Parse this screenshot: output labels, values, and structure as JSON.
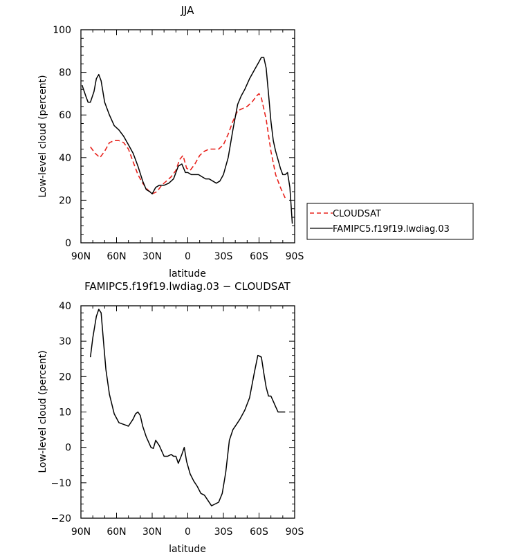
{
  "colors": {
    "cloudsat": "#e8221c",
    "model": "#000000"
  },
  "chart_data": [
    {
      "type": "line",
      "title": "JJA",
      "xlabel": "latitude",
      "ylabel": "Low-level cloud (percent)",
      "xlim": [
        90,
        -90
      ],
      "ylim": [
        0,
        100
      ],
      "x_ticks": [
        90,
        60,
        30,
        0,
        -30,
        -60,
        -90
      ],
      "x_tick_labels": [
        "90N",
        "60N",
        "30N",
        "0",
        "30S",
        "60S",
        "90S"
      ],
      "y_ticks": [
        0,
        20,
        40,
        60,
        80,
        100
      ],
      "y_tick_labels": [
        "0",
        "20",
        "40",
        "60",
        "80",
        "100"
      ],
      "legend_placement": "outside-right",
      "series": [
        {
          "name": "CLOUDSAT",
          "style": "dashed",
          "color": "#e8221c",
          "x": [
            82,
            78,
            74,
            70,
            66,
            62,
            58,
            54,
            50,
            46,
            42,
            38,
            34,
            30,
            26,
            22,
            18,
            14,
            10,
            7,
            4,
            1,
            -2,
            -6,
            -10,
            -14,
            -18,
            -22,
            -26,
            -30,
            -34,
            -38,
            -42,
            -46,
            -50,
            -54,
            -58,
            -60,
            -62,
            -66,
            -70,
            -74,
            -78,
            -82
          ],
          "y": [
            45,
            42,
            40,
            43,
            47,
            48,
            48,
            47,
            44,
            38,
            32,
            28,
            25,
            23,
            24,
            27,
            29,
            31,
            34,
            39,
            41,
            35,
            34,
            37,
            41,
            43,
            44,
            44,
            44,
            46,
            51,
            57,
            62,
            63,
            64,
            66,
            69,
            70,
            68,
            58,
            43,
            32,
            26,
            21
          ]
        },
        {
          "name": "FAMIPC5.f19f19.lwdiag.03",
          "style": "solid",
          "color": "#000000",
          "x": [
            89,
            86,
            84,
            82,
            79,
            77,
            75,
            73,
            70,
            66,
            62,
            58,
            54,
            50,
            46,
            42,
            38,
            35,
            32,
            30,
            27,
            24,
            20,
            16,
            12,
            8,
            5,
            2,
            0,
            -3,
            -6,
            -9,
            -12,
            -15,
            -18,
            -21,
            -24,
            -27,
            -30,
            -34,
            -38,
            -42,
            -45,
            -48,
            -52,
            -56,
            -60,
            -62,
            -64,
            -66,
            -68,
            -70,
            -72,
            -74,
            -76,
            -78,
            -80,
            -82,
            -84,
            -86,
            -88
          ],
          "y": [
            74,
            69,
            66,
            66,
            71,
            77,
            79,
            76,
            66,
            60,
            55,
            53,
            50,
            46,
            42,
            36,
            29,
            25,
            24,
            23,
            26,
            27,
            27,
            28,
            30,
            36,
            37,
            33,
            33,
            32,
            32,
            32,
            31,
            30,
            30,
            29,
            28,
            29,
            32,
            40,
            53,
            65,
            69,
            72,
            77,
            81,
            85,
            87,
            87,
            82,
            70,
            57,
            48,
            43,
            39,
            35,
            32,
            32,
            33,
            26,
            9
          ]
        }
      ]
    },
    {
      "type": "line",
      "title": "FAMIPC5.f19f19.lwdiag.03 − CLOUDSAT",
      "xlabel": "latitude",
      "ylabel": "Low-level cloud (percent)",
      "xlim": [
        90,
        -90
      ],
      "ylim": [
        -20,
        40
      ],
      "x_ticks": [
        90,
        60,
        30,
        0,
        -30,
        -60,
        -90
      ],
      "x_tick_labels": [
        "90N",
        "60N",
        "30N",
        "0",
        "30S",
        "60S",
        "90S"
      ],
      "y_ticks": [
        -20,
        -10,
        0,
        10,
        20,
        30,
        40
      ],
      "y_tick_labels": [
        "−20",
        "−10",
        "0",
        "10",
        "20",
        "30",
        "40"
      ],
      "series": [
        {
          "style": "solid",
          "color": "#000000",
          "x": [
            82,
            80,
            77,
            75,
            73,
            71,
            69,
            66,
            62,
            58,
            54,
            50,
            46,
            44,
            42,
            40,
            38,
            35,
            31,
            29,
            27,
            24,
            20,
            17,
            14,
            12,
            10,
            8,
            5,
            3,
            1,
            -2,
            -5,
            -8,
            -11,
            -14,
            -17,
            -20,
            -23,
            -26,
            -29,
            -32,
            -35,
            -38,
            -41,
            -44,
            -48,
            -52,
            -56,
            -59,
            -62,
            -64,
            -66,
            -68,
            -70,
            -72,
            -74,
            -76,
            -78,
            -80,
            -82
          ],
          "y": [
            25.5,
            31,
            37,
            39,
            38,
            30,
            22,
            15,
            9.5,
            7,
            6.5,
            6,
            8,
            9.5,
            10,
            9,
            6,
            3,
            0,
            -0.3,
            2,
            0.5,
            -2.5,
            -2.5,
            -2,
            -2.5,
            -2.5,
            -4.5,
            -2,
            0,
            -4,
            -7.5,
            -9.5,
            -11,
            -13,
            -13.5,
            -15,
            -16.5,
            -16,
            -15.5,
            -13,
            -7,
            2,
            5,
            6.5,
            8,
            10.5,
            14,
            21,
            26,
            25.5,
            21,
            17,
            14.5,
            14.5,
            13,
            11.5,
            10,
            10,
            10,
            10
          ]
        }
      ]
    }
  ]
}
